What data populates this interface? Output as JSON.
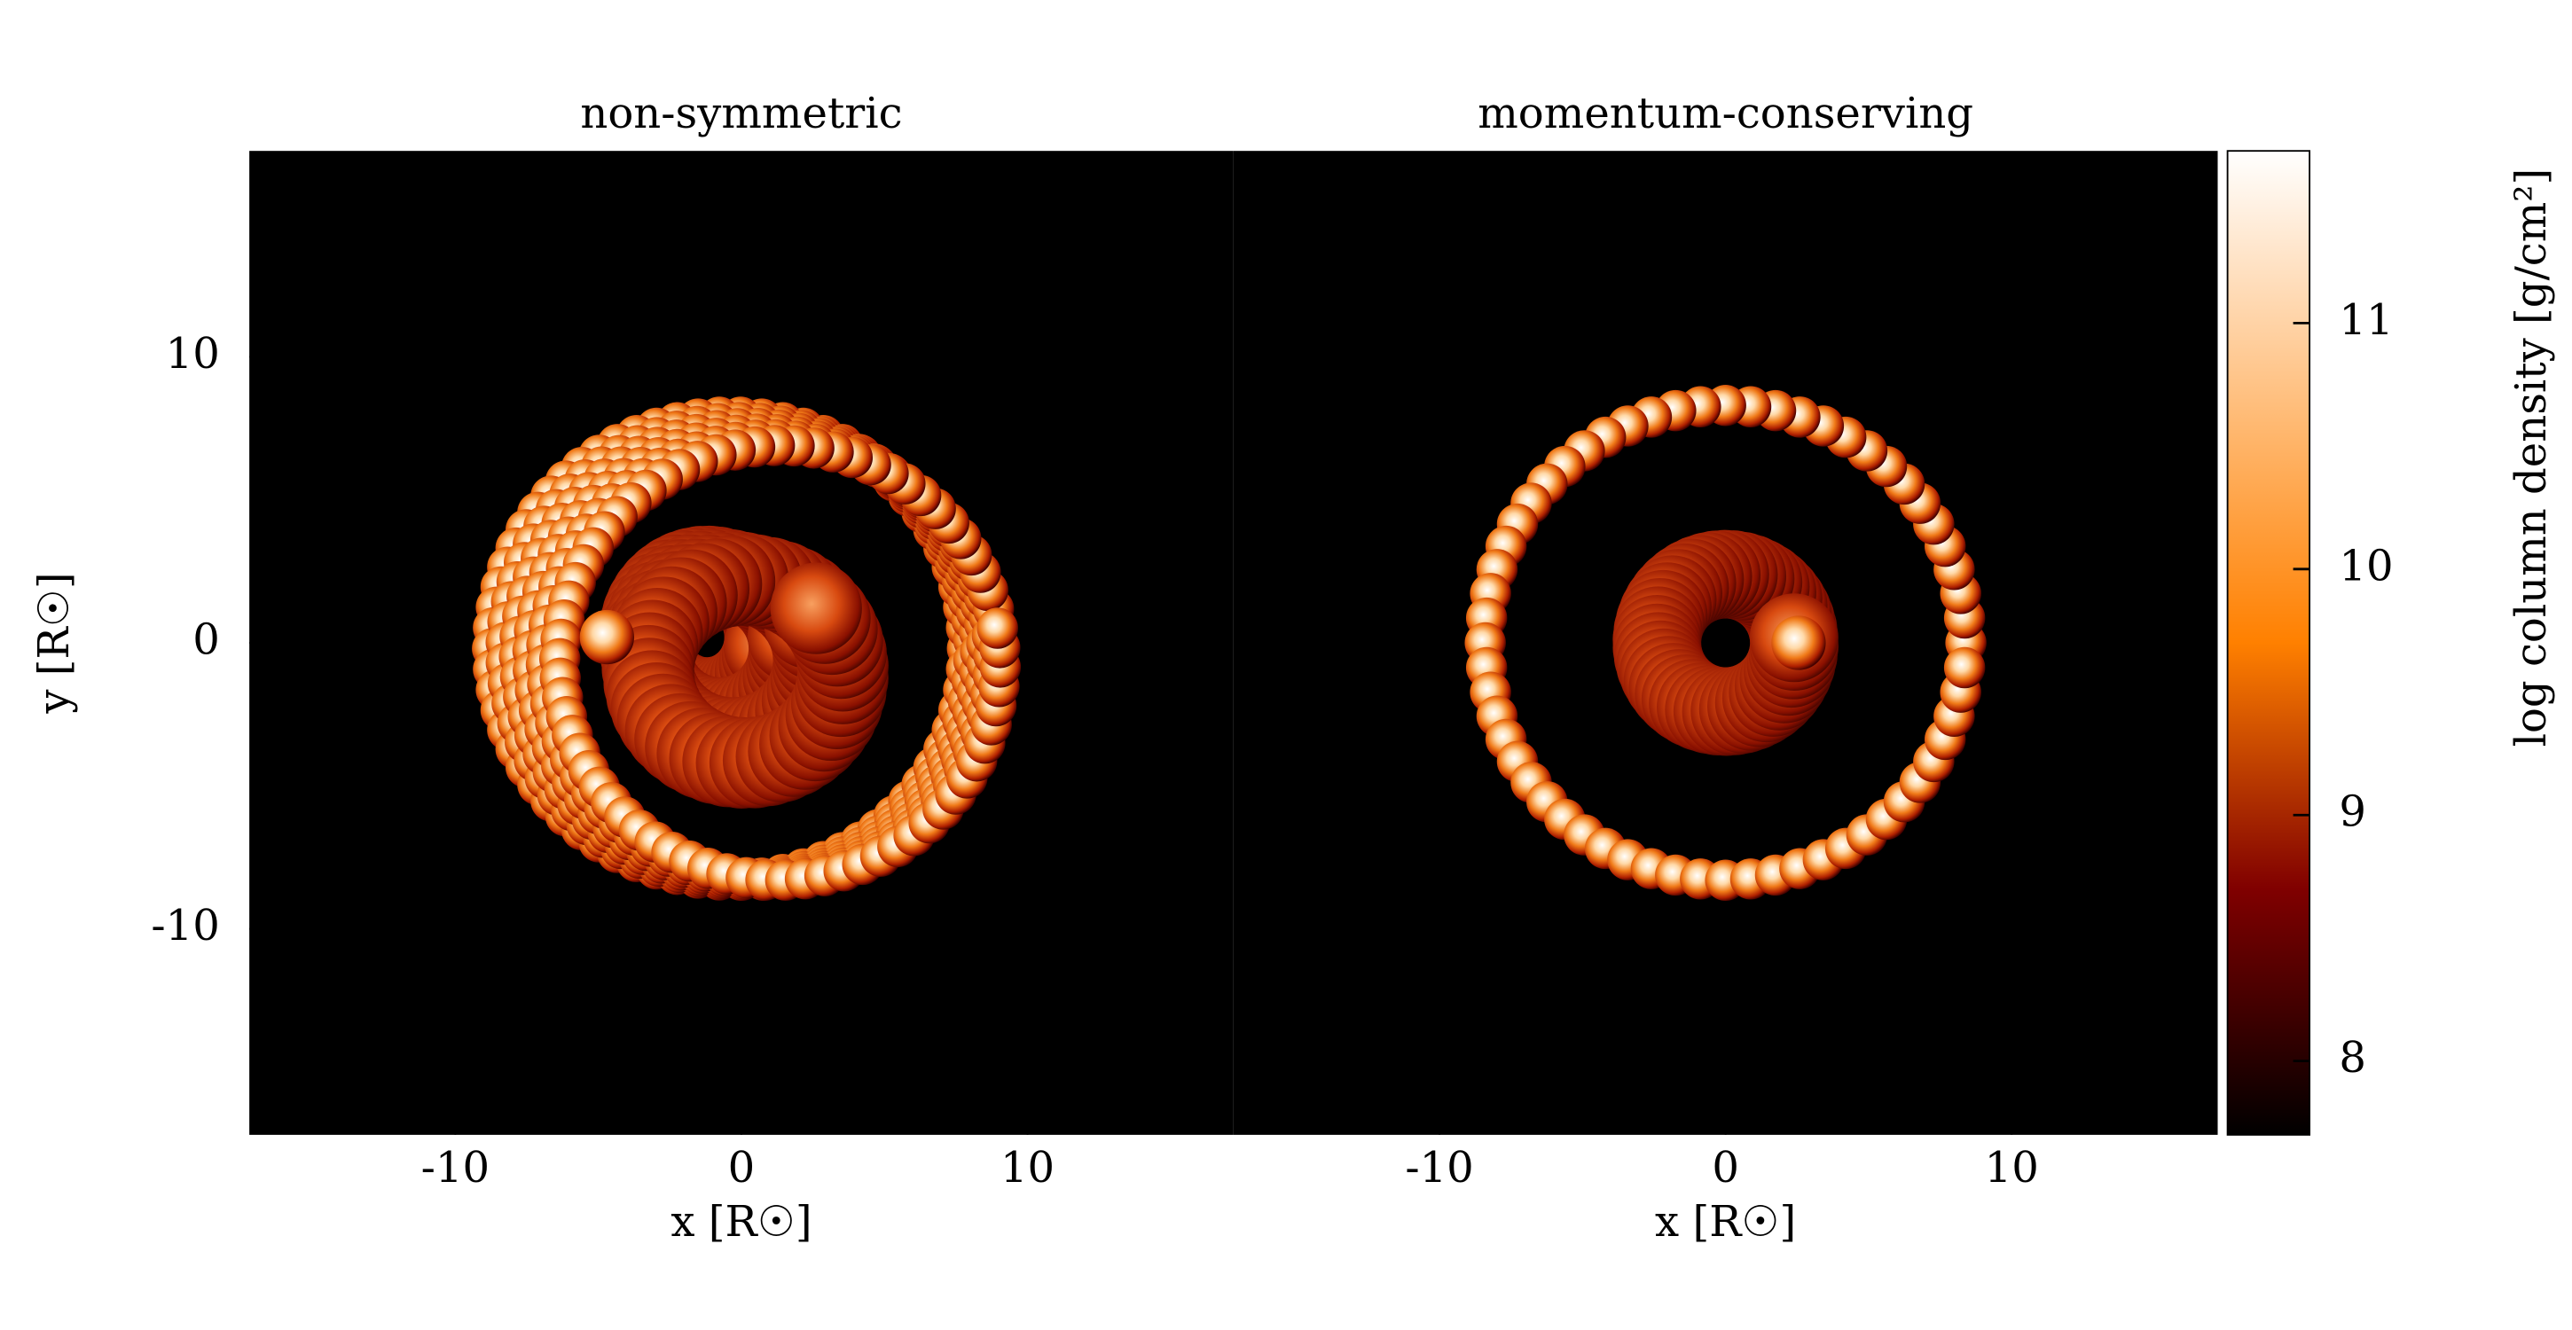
{
  "chart_data": [
    {
      "type": "image",
      "title": "non-symmetric",
      "xlabel": "x [R☉]",
      "ylabel": "y [R☉]",
      "xlim": [
        -17.2,
        17.2
      ],
      "ylim": [
        -17.2,
        17.2
      ],
      "xticks": [
        -10,
        0,
        10
      ],
      "yticks": [
        -10,
        0,
        10
      ]
    },
    {
      "type": "image",
      "title": "momentum-conserving",
      "xlabel": "x [R☉]",
      "xlim": [
        -17.2,
        17.2
      ],
      "ylim": [
        -17.2,
        17.2
      ],
      "xticks": [
        -10,
        0,
        10
      ]
    }
  ],
  "colorbar": {
    "label": "log column density [g/cm²]",
    "lim": [
      7.7,
      11.7
    ],
    "ticks": [
      8,
      9,
      10,
      11
    ],
    "colormap": "afmhot"
  }
}
